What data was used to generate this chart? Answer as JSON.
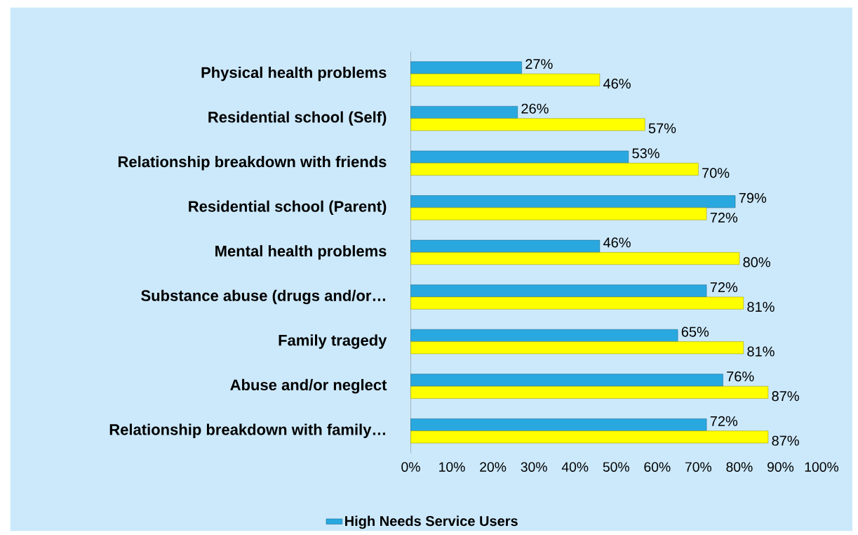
{
  "chart_data": {
    "type": "bar",
    "orientation": "horizontal",
    "categories": [
      "Physical health problems",
      "Residential school (Self)",
      "Relationship breakdown with friends",
      "Residential school (Parent)",
      "Mental health problems",
      "Substance abuse (drugs and/or…",
      "Family tragedy",
      "Abuse and/or neglect",
      "Relationship breakdown with family…"
    ],
    "series": [
      {
        "name": "High Needs Service Users",
        "color": "#29a8e0",
        "values": [
          27,
          26,
          53,
          79,
          46,
          72,
          65,
          76,
          72
        ],
        "value_labels": [
          "27%",
          "26%",
          "53%",
          "79%",
          "46%",
          "72%",
          "65%",
          "76%",
          "72%"
        ]
      },
      {
        "color": "#ffff00",
        "values": [
          46,
          57,
          70,
          72,
          80,
          81,
          81,
          87,
          87
        ],
        "value_labels": [
          "46%",
          "57%",
          "70%",
          "72%",
          "80%",
          "81%",
          "81%",
          "87%",
          "87%"
        ]
      }
    ],
    "xlim": [
      0,
      100
    ],
    "xticks": [
      {
        "value": 0,
        "label": "0%"
      },
      {
        "value": 10,
        "label": "10%"
      },
      {
        "value": 20,
        "label": "20%"
      },
      {
        "value": 30,
        "label": "30%"
      },
      {
        "value": 40,
        "label": "40%"
      },
      {
        "value": 50,
        "label": "50%"
      },
      {
        "value": 60,
        "label": "60%"
      },
      {
        "value": 70,
        "label": "70%"
      },
      {
        "value": 80,
        "label": "80%"
      },
      {
        "value": 90,
        "label": "90%"
      },
      {
        "value": 100,
        "label": "100%"
      }
    ],
    "legend": "bottom"
  }
}
